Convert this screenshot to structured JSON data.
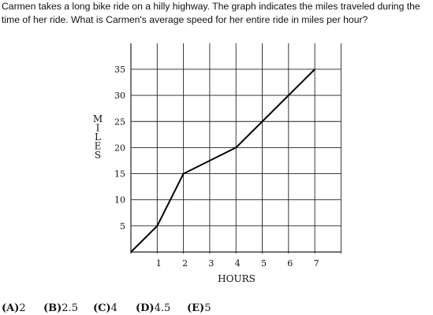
{
  "question": {
    "text": "Carmen takes a long bike ride on a hilly highway. The graph indicates the miles traveled during the time of her ride. What is Carmen's average speed for her entire ride in miles per hour?"
  },
  "chart_data": {
    "type": "line",
    "xlabel": "HOURS",
    "ylabel": "MILES",
    "x_ticks": [
      "1",
      "2",
      "3",
      "4",
      "5",
      "6",
      "7"
    ],
    "y_ticks": [
      "5",
      "10",
      "15",
      "20",
      "25",
      "30",
      "35"
    ],
    "xlim": [
      0,
      8
    ],
    "ylim": [
      0,
      35
    ],
    "grid": true,
    "series": [
      {
        "points": [
          [
            0,
            0
          ],
          [
            1,
            5
          ],
          [
            2,
            15
          ],
          [
            4,
            20
          ],
          [
            7,
            35
          ]
        ]
      }
    ]
  },
  "choices": [
    {
      "letter": "(A)",
      "value": "2"
    },
    {
      "letter": "(B)",
      "value": "2.5"
    },
    {
      "letter": "(C)",
      "value": "4"
    },
    {
      "letter": "(D)",
      "value": "4.5"
    },
    {
      "letter": "(E)",
      "value": "5"
    }
  ]
}
